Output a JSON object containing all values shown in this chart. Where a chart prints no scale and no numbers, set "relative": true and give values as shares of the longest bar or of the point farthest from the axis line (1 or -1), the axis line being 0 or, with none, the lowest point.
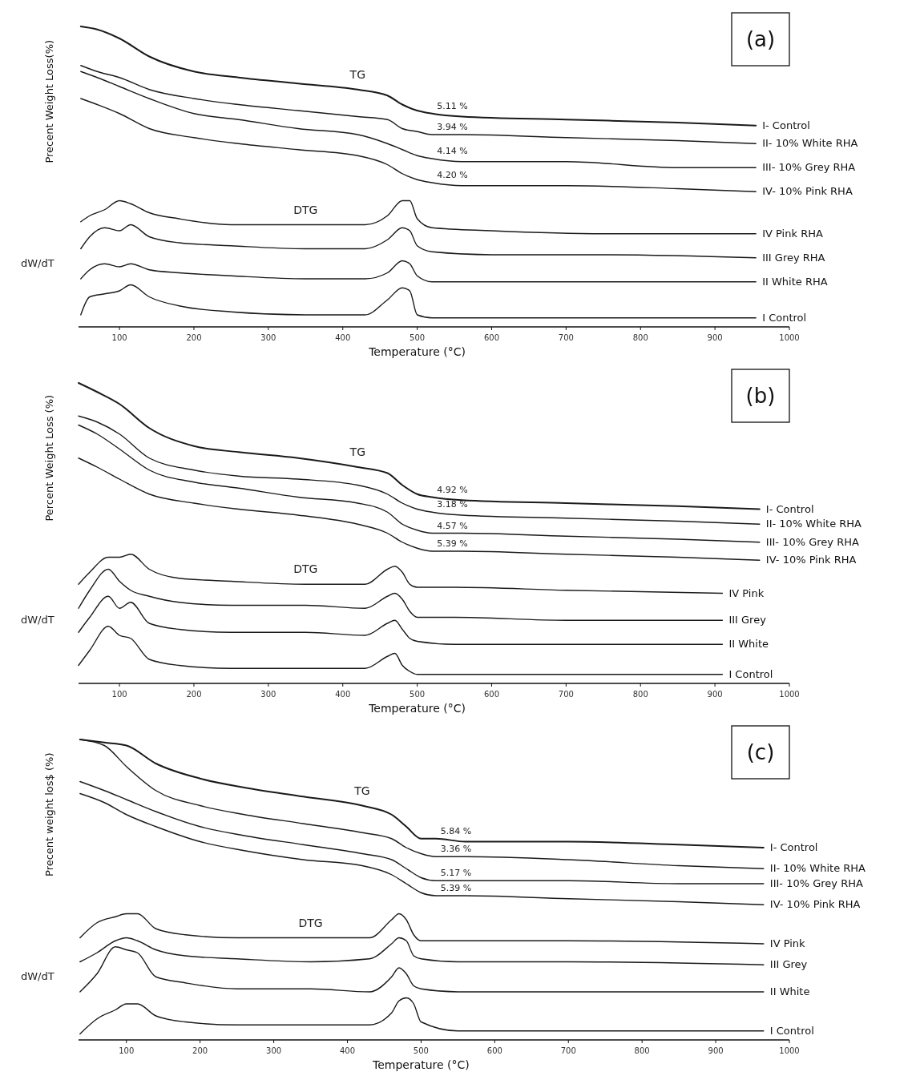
{
  "chart_data": [
    {
      "type": "line",
      "title": "(a)",
      "ylabel": "Precent Weight Loss(%)",
      "xlabel": "Temperature (°C)",
      "relative": true,
      "xlim": [
        45,
        1000
      ],
      "xticks": [
        100,
        200,
        300,
        400,
        500,
        600,
        700,
        800,
        900,
        1000
      ],
      "annotations": [
        "dW/dT",
        "TG",
        "DTG",
        "5.11 %",
        "3.94 %",
        "4.14 %",
        "4.20 %"
      ],
      "series": [
        {
          "name": "I- Control",
          "color": "#1a1a1a",
          "x": [
            48,
            70,
            100,
            140,
            200,
            260,
            340,
            420,
            460,
            480,
            500,
            520,
            560,
            700,
            850,
            955
          ],
          "values": [
            1.0,
            0.99,
            0.96,
            0.9,
            0.85,
            0.83,
            0.81,
            0.79,
            0.77,
            0.74,
            0.72,
            0.71,
            0.7,
            0.69,
            0.68,
            0.67
          ]
        },
        {
          "name": "II- 10% White RHA",
          "color": "#1a1a1a",
          "x": [
            48,
            70,
            100,
            140,
            200,
            260,
            340,
            420,
            460,
            480,
            500,
            520,
            560,
            700,
            850,
            955
          ],
          "values": [
            0.87,
            0.85,
            0.83,
            0.79,
            0.76,
            0.74,
            0.72,
            0.7,
            0.69,
            0.66,
            0.65,
            0.64,
            0.64,
            0.63,
            0.62,
            0.61
          ]
        },
        {
          "name": "III- 10% Grey RHA",
          "color": "#1a1a1a",
          "x": [
            48,
            70,
            100,
            140,
            200,
            260,
            340,
            420,
            460,
            480,
            500,
            520,
            560,
            700,
            850,
            955
          ],
          "values": [
            0.85,
            0.83,
            0.8,
            0.76,
            0.71,
            0.69,
            0.66,
            0.64,
            0.61,
            0.59,
            0.57,
            0.56,
            0.55,
            0.55,
            0.53,
            0.53
          ]
        },
        {
          "name": "IV- 10% Pink RHA",
          "color": "#1a1a1a",
          "x": [
            48,
            70,
            100,
            140,
            200,
            260,
            340,
            420,
            460,
            480,
            500,
            520,
            560,
            700,
            850,
            955
          ],
          "values": [
            0.76,
            0.74,
            0.71,
            0.66,
            0.63,
            0.61,
            0.59,
            0.57,
            0.54,
            0.51,
            0.49,
            0.48,
            0.47,
            0.47,
            0.46,
            0.45
          ]
        },
        {
          "name": "IV Pink RHA",
          "color": "#1a1a1a",
          "x": [
            48,
            60,
            80,
            100,
            115,
            140,
            180,
            250,
            350,
            430,
            460,
            480,
            490,
            500,
            520,
            600,
            750,
            955
          ],
          "values": [
            0.35,
            0.37,
            0.39,
            0.42,
            0.41,
            0.38,
            0.36,
            0.34,
            0.34,
            0.34,
            0.37,
            0.42,
            0.42,
            0.36,
            0.33,
            0.32,
            0.31,
            0.31
          ]
        },
        {
          "name": "III Grey RHA",
          "color": "#1a1a1a",
          "x": [
            48,
            60,
            80,
            100,
            115,
            140,
            180,
            250,
            350,
            430,
            460,
            480,
            490,
            500,
            520,
            600,
            750,
            955
          ],
          "values": [
            0.26,
            0.3,
            0.33,
            0.32,
            0.34,
            0.3,
            0.28,
            0.27,
            0.26,
            0.26,
            0.29,
            0.33,
            0.32,
            0.27,
            0.25,
            0.24,
            0.24,
            0.23
          ]
        },
        {
          "name": "II White RHA",
          "color": "#1a1a1a",
          "x": [
            48,
            60,
            80,
            100,
            115,
            140,
            180,
            250,
            350,
            430,
            460,
            480,
            490,
            500,
            520,
            600,
            750,
            955
          ],
          "values": [
            0.16,
            0.19,
            0.21,
            0.2,
            0.21,
            0.19,
            0.18,
            0.17,
            0.16,
            0.16,
            0.18,
            0.22,
            0.21,
            0.17,
            0.15,
            0.15,
            0.15,
            0.15
          ]
        },
        {
          "name": "I Control",
          "color": "#1a1a1a",
          "x": [
            48,
            60,
            80,
            100,
            115,
            140,
            180,
            250,
            350,
            430,
            460,
            480,
            490,
            500,
            520,
            600,
            750,
            955
          ],
          "values": [
            0.04,
            0.1,
            0.11,
            0.12,
            0.14,
            0.1,
            0.07,
            0.05,
            0.04,
            0.04,
            0.09,
            0.13,
            0.12,
            0.04,
            0.03,
            0.03,
            0.03,
            0.03
          ]
        }
      ]
    },
    {
      "type": "line",
      "title": "(b)",
      "ylabel": "Percent Weight Loss (%)",
      "xlabel": "Temperature (°C)",
      "relative": true,
      "xlim": [
        45,
        1000
      ],
      "xticks": [
        100,
        200,
        300,
        400,
        500,
        600,
        700,
        800,
        900,
        1000
      ],
      "annotations": [
        "dW/dT",
        "TG",
        "DTG",
        "4.92 %",
        "3.18 %",
        "4.57 %",
        "5.39 %"
      ],
      "series": [
        {
          "name": "I- Control",
          "color": "#1a1a1a",
          "x": [
            45,
            70,
            100,
            140,
            200,
            260,
            340,
            420,
            460,
            480,
            500,
            520,
            560,
            700,
            850,
            960
          ],
          "values": [
            1.0,
            0.97,
            0.93,
            0.85,
            0.79,
            0.77,
            0.75,
            0.72,
            0.7,
            0.66,
            0.63,
            0.62,
            0.61,
            0.6,
            0.59,
            0.58
          ]
        },
        {
          "name": "II- 10% White RHA",
          "color": "#1a1a1a",
          "x": [
            45,
            70,
            100,
            140,
            200,
            260,
            340,
            420,
            460,
            480,
            500,
            520,
            560,
            700,
            850,
            960
          ],
          "values": [
            0.89,
            0.87,
            0.83,
            0.75,
            0.71,
            0.69,
            0.68,
            0.66,
            0.63,
            0.6,
            0.58,
            0.57,
            0.56,
            0.55,
            0.54,
            0.53
          ]
        },
        {
          "name": "III- 10% Grey RHA",
          "color": "#1a1a1a",
          "x": [
            45,
            70,
            100,
            140,
            200,
            260,
            340,
            420,
            460,
            480,
            500,
            520,
            560,
            700,
            850,
            960
          ],
          "values": [
            0.86,
            0.83,
            0.78,
            0.71,
            0.67,
            0.65,
            0.62,
            0.6,
            0.57,
            0.53,
            0.51,
            0.5,
            0.5,
            0.49,
            0.48,
            0.47
          ]
        },
        {
          "name": "IV- 10% Pink RHA",
          "color": "#1a1a1a",
          "x": [
            45,
            70,
            100,
            140,
            200,
            260,
            340,
            420,
            460,
            480,
            500,
            520,
            560,
            700,
            850,
            960
          ],
          "values": [
            0.75,
            0.72,
            0.68,
            0.63,
            0.6,
            0.58,
            0.56,
            0.53,
            0.5,
            0.47,
            0.45,
            0.44,
            0.44,
            0.43,
            0.42,
            0.41
          ]
        },
        {
          "name": "IV Pink",
          "color": "#1a1a1a",
          "x": [
            45,
            60,
            85,
            100,
            115,
            140,
            180,
            250,
            350,
            430,
            460,
            470,
            480,
            490,
            500,
            550,
            700,
            910
          ],
          "values": [
            0.33,
            0.37,
            0.42,
            0.42,
            0.43,
            0.38,
            0.35,
            0.34,
            0.33,
            0.33,
            0.38,
            0.39,
            0.37,
            0.33,
            0.32,
            0.32,
            0.31,
            0.3
          ]
        },
        {
          "name": "III Grey",
          "color": "#1a1a1a",
          "x": [
            45,
            60,
            85,
            100,
            115,
            140,
            180,
            250,
            350,
            430,
            460,
            470,
            480,
            490,
            500,
            550,
            700,
            910
          ],
          "values": [
            0.25,
            0.31,
            0.38,
            0.34,
            0.31,
            0.29,
            0.27,
            0.26,
            0.26,
            0.25,
            0.29,
            0.3,
            0.28,
            0.24,
            0.22,
            0.22,
            0.21,
            0.21
          ]
        },
        {
          "name": "II White",
          "color": "#1a1a1a",
          "x": [
            45,
            60,
            85,
            100,
            115,
            140,
            180,
            250,
            350,
            430,
            460,
            470,
            480,
            490,
            500,
            550,
            700,
            910
          ],
          "values": [
            0.17,
            0.22,
            0.29,
            0.25,
            0.27,
            0.2,
            0.18,
            0.17,
            0.17,
            0.16,
            0.2,
            0.21,
            0.18,
            0.15,
            0.14,
            0.13,
            0.13,
            0.13
          ]
        },
        {
          "name": "I Control",
          "color": "#1a1a1a",
          "x": [
            45,
            60,
            85,
            100,
            115,
            140,
            180,
            250,
            350,
            430,
            460,
            470,
            480,
            490,
            500,
            550,
            700,
            910
          ],
          "values": [
            0.06,
            0.11,
            0.19,
            0.16,
            0.15,
            0.08,
            0.06,
            0.05,
            0.05,
            0.05,
            0.09,
            0.1,
            0.06,
            0.04,
            0.03,
            0.03,
            0.03,
            0.03
          ]
        }
      ]
    },
    {
      "type": "line",
      "title": "(c)",
      "ylabel": "Precent weight los$ (%)",
      "xlabel": "Temperature (°C)",
      "relative": true,
      "xlim": [
        35,
        1000
      ],
      "xticks": [
        100,
        200,
        300,
        400,
        500,
        600,
        700,
        800,
        900,
        1000
      ],
      "annotations": [
        "dW/dT",
        "TG",
        "DTG",
        "5.84 %",
        "3.36 %",
        "5.17 %",
        "5.39 %"
      ],
      "series": [
        {
          "name": "I- Control",
          "color": "#1a1a1a",
          "x": [
            37,
            70,
            100,
            140,
            200,
            260,
            340,
            420,
            460,
            480,
            500,
            520,
            560,
            700,
            850,
            965
          ],
          "values": [
            1.0,
            0.99,
            0.98,
            0.92,
            0.87,
            0.84,
            0.81,
            0.78,
            0.75,
            0.71,
            0.67,
            0.67,
            0.66,
            0.66,
            0.65,
            0.64
          ]
        },
        {
          "name": "II- 10% White RHA",
          "color": "#1a1a1a",
          "x": [
            37,
            70,
            100,
            140,
            200,
            260,
            340,
            420,
            460,
            480,
            500,
            520,
            560,
            700,
            850,
            965
          ],
          "values": [
            1.0,
            0.98,
            0.91,
            0.83,
            0.78,
            0.75,
            0.72,
            0.69,
            0.67,
            0.64,
            0.62,
            0.61,
            0.61,
            0.6,
            0.58,
            0.57
          ]
        },
        {
          "name": "III- 10% Grey RHA",
          "color": "#1a1a1a",
          "x": [
            37,
            70,
            100,
            140,
            200,
            260,
            340,
            420,
            460,
            480,
            500,
            520,
            560,
            700,
            850,
            965
          ],
          "values": [
            0.86,
            0.83,
            0.8,
            0.76,
            0.71,
            0.68,
            0.65,
            0.62,
            0.6,
            0.57,
            0.54,
            0.53,
            0.53,
            0.53,
            0.52,
            0.52
          ]
        },
        {
          "name": "IV- 10% Pink RHA",
          "color": "#1a1a1a",
          "x": [
            37,
            70,
            100,
            140,
            200,
            260,
            340,
            420,
            460,
            480,
            500,
            520,
            560,
            700,
            850,
            965
          ],
          "values": [
            0.82,
            0.79,
            0.75,
            0.71,
            0.66,
            0.63,
            0.6,
            0.58,
            0.55,
            0.52,
            0.49,
            0.48,
            0.48,
            0.47,
            0.46,
            0.45
          ]
        },
        {
          "name": "IV Pink",
          "color": "#1a1a1a",
          "x": [
            37,
            60,
            85,
            100,
            115,
            140,
            180,
            250,
            350,
            430,
            460,
            470,
            480,
            490,
            500,
            550,
            700,
            965
          ],
          "values": [
            0.34,
            0.39,
            0.41,
            0.42,
            0.42,
            0.37,
            0.35,
            0.34,
            0.34,
            0.34,
            0.4,
            0.42,
            0.4,
            0.35,
            0.33,
            0.33,
            0.33,
            0.32
          ]
        },
        {
          "name": "III Grey",
          "color": "#1a1a1a",
          "x": [
            37,
            60,
            85,
            100,
            115,
            140,
            180,
            250,
            350,
            430,
            460,
            470,
            480,
            490,
            500,
            550,
            700,
            965
          ],
          "values": [
            0.26,
            0.29,
            0.33,
            0.34,
            0.33,
            0.3,
            0.28,
            0.27,
            0.26,
            0.27,
            0.32,
            0.34,
            0.33,
            0.28,
            0.27,
            0.26,
            0.26,
            0.25
          ]
        },
        {
          "name": "II White",
          "color": "#1a1a1a",
          "x": [
            37,
            60,
            85,
            100,
            115,
            140,
            180,
            250,
            350,
            430,
            460,
            470,
            480,
            490,
            500,
            550,
            700,
            965
          ],
          "values": [
            0.16,
            0.22,
            0.31,
            0.3,
            0.29,
            0.21,
            0.19,
            0.17,
            0.17,
            0.16,
            0.21,
            0.24,
            0.22,
            0.18,
            0.17,
            0.16,
            0.16,
            0.16
          ]
        },
        {
          "name": "I Control",
          "color": "#1a1a1a",
          "x": [
            37,
            60,
            85,
            100,
            115,
            140,
            180,
            250,
            350,
            430,
            460,
            470,
            480,
            490,
            500,
            550,
            700,
            965
          ],
          "values": [
            0.02,
            0.07,
            0.1,
            0.12,
            0.12,
            0.08,
            0.06,
            0.05,
            0.05,
            0.05,
            0.09,
            0.13,
            0.14,
            0.12,
            0.06,
            0.03,
            0.03,
            0.03
          ]
        }
      ]
    }
  ]
}
